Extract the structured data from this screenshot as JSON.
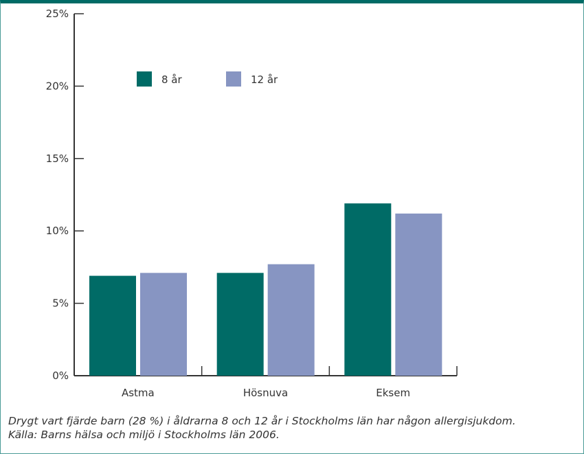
{
  "chart_data": {
    "type": "bar",
    "categories": [
      "Astma",
      "Hösnuva",
      "Eksem"
    ],
    "series": [
      {
        "name": "8 år",
        "values": [
          6.9,
          7.1,
          11.9
        ],
        "color": "#006b66"
      },
      {
        "name": "12 år",
        "values": [
          7.1,
          7.7,
          11.2
        ],
        "color": "#8795c2"
      }
    ],
    "yticks": [
      "0%",
      "5%",
      "10%",
      "15%",
      "20%",
      "25%"
    ],
    "ytick_values": [
      0,
      5,
      10,
      15,
      20,
      25
    ],
    "ylim": [
      0,
      25
    ],
    "title": "",
    "xlabel": "",
    "ylabel": "",
    "legend_position": "top-left",
    "grid": false
  },
  "caption": {
    "line1": "Drygt vart fjärde barn (28 %) i åldrarna 8 och 12 år i Stockholms län har någon allergisjukdom.",
    "line2": "Källa: Barns hälsa och miljö i Stockholms län 2006."
  },
  "colors": {
    "frame": "#006b66",
    "axis": "#333333"
  }
}
